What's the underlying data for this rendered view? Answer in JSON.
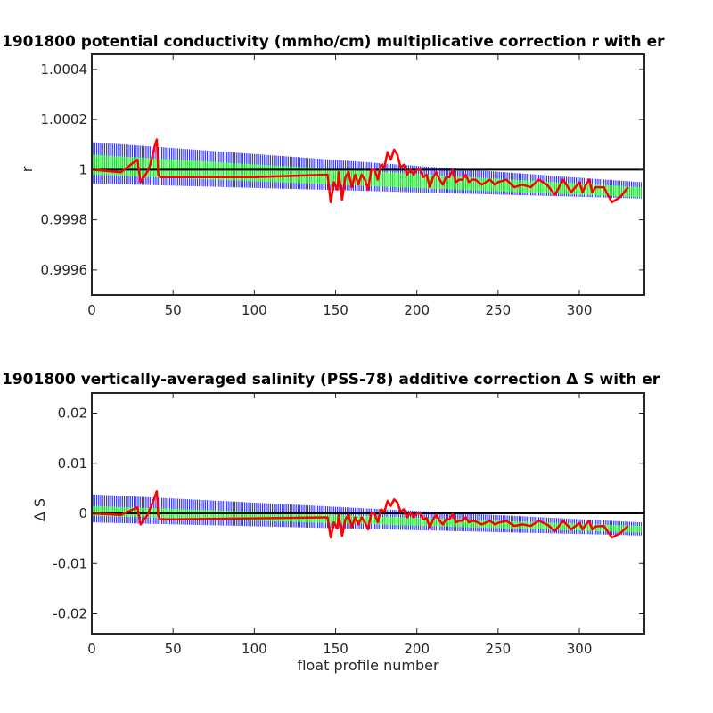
{
  "chart_data": [
    {
      "type": "line",
      "title": "1901800 potential conductivity (mmho/cm) multiplicative correction r with er",
      "xlabel": "",
      "ylabel": "r",
      "xlim": [
        0,
        340
      ],
      "ylim": [
        0.9995,
        1.00046
      ],
      "x_ticks": [
        0,
        50,
        100,
        150,
        200,
        250,
        300
      ],
      "x_tick_labels": [
        "0",
        "50",
        "100",
        "150",
        "200",
        "250",
        "300"
      ],
      "y_ticks": [
        0.9996,
        0.9998,
        1.0,
        1.0002,
        1.0004
      ],
      "y_tick_labels": [
        "0.9996",
        "0.9998",
        "1",
        "1.0002",
        "1.0004"
      ],
      "reference_line": 1.0,
      "grid": false,
      "colors": {
        "error_band": "#0000ff",
        "fit": "#00ff00",
        "data": "#ff0000",
        "reference": "#000000"
      },
      "series": [
        {
          "role": "error_band",
          "x": [
            0,
            338
          ],
          "upper": [
            1.00011,
            0.99995
          ],
          "lower": [
            0.999945,
            0.999885
          ]
        },
        {
          "role": "fit",
          "x": [
            0,
            338
          ],
          "upper": [
            1.00006,
            0.99993
          ],
          "lower": [
            0.99998,
            0.99989
          ]
        },
        {
          "role": "data",
          "x": [
            0,
            18,
            28,
            30,
            34,
            36,
            39,
            40,
            41,
            42,
            50,
            100,
            145,
            147,
            149,
            151,
            152,
            154,
            156,
            158,
            160,
            162,
            164,
            166,
            168,
            170,
            172,
            174,
            176,
            178,
            180,
            182,
            184,
            186,
            188,
            190,
            192,
            194,
            196,
            198,
            200,
            202,
            204,
            206,
            208,
            210,
            212,
            214,
            216,
            218,
            220,
            222,
            224,
            226,
            228,
            230,
            232,
            234,
            236,
            240,
            245,
            248,
            250,
            255,
            260,
            265,
            270,
            275,
            280,
            285,
            290,
            295,
            300,
            302,
            304,
            306,
            308,
            310,
            315,
            320,
            325,
            330
          ],
          "y": [
            1.0,
            0.99999,
            1.00004,
            0.99995,
            0.99999,
            1.00002,
            1.0001,
            1.00012,
            0.99998,
            0.99997,
            0.99997,
            0.99997,
            0.99998,
            0.99987,
            0.99995,
            0.99992,
            0.99999,
            0.99988,
            0.99997,
            0.99999,
            0.99993,
            0.99998,
            0.99994,
            0.99998,
            0.99996,
            0.99992,
            1.0,
            1.0,
            0.99996,
            1.00002,
            1.00001,
            1.00007,
            1.00004,
            1.00008,
            1.00006,
            1.00001,
            1.00002,
            0.99998,
            1.0,
            0.99998,
            1.0,
            1.0,
            0.99997,
            0.99998,
            0.99993,
            0.99997,
            0.99999,
            0.99996,
            0.99994,
            0.99997,
            0.99997,
            1.0,
            0.99995,
            0.99996,
            0.99996,
            0.99998,
            0.99995,
            0.99996,
            0.99996,
            0.99994,
            0.99996,
            0.99994,
            0.99995,
            0.99996,
            0.99993,
            0.99994,
            0.99993,
            0.99996,
            0.99994,
            0.9999,
            0.99996,
            0.99991,
            0.99995,
            0.99991,
            0.99994,
            0.99996,
            0.99991,
            0.99993,
            0.99993,
            0.99987,
            0.99989,
            0.99993
          ]
        }
      ]
    },
    {
      "type": "line",
      "title": "1901800 vertically-averaged salinity (PSS-78) additive correction Δ S with er",
      "xlabel": "float profile number",
      "ylabel": "Δ S",
      "xlim": [
        0,
        340
      ],
      "ylim": [
        -0.024,
        0.024
      ],
      "x_ticks": [
        0,
        50,
        100,
        150,
        200,
        250,
        300
      ],
      "x_tick_labels": [
        "0",
        "50",
        "100",
        "150",
        "200",
        "250",
        "300"
      ],
      "y_ticks": [
        -0.02,
        -0.01,
        0,
        0.01,
        0.02
      ],
      "y_tick_labels": [
        "-0.02",
        "-0.01",
        "0",
        "0.01",
        "0.02"
      ],
      "reference_line": 0,
      "grid": false,
      "colors": {
        "error_band": "#0000ff",
        "fit": "#00ff00",
        "data": "#ff0000",
        "reference": "#000000"
      },
      "series": [
        {
          "role": "error_band",
          "x": [
            0,
            338
          ],
          "upper": [
            0.0038,
            -0.0018
          ],
          "lower": [
            -0.0018,
            -0.0044
          ]
        },
        {
          "role": "fit",
          "x": [
            0,
            338
          ],
          "upper": [
            0.0015,
            -0.0025
          ],
          "lower": [
            -0.0005,
            -0.0038
          ]
        },
        {
          "role": "data",
          "x": [
            0,
            18,
            28,
            30,
            34,
            36,
            39,
            40,
            41,
            42,
            50,
            100,
            145,
            147,
            149,
            151,
            152,
            154,
            156,
            158,
            160,
            162,
            164,
            166,
            168,
            170,
            172,
            174,
            176,
            178,
            180,
            182,
            184,
            186,
            188,
            190,
            192,
            194,
            196,
            198,
            200,
            202,
            204,
            206,
            208,
            210,
            212,
            214,
            216,
            218,
            220,
            222,
            224,
            226,
            228,
            230,
            232,
            234,
            236,
            240,
            245,
            248,
            250,
            255,
            260,
            265,
            270,
            275,
            280,
            285,
            290,
            295,
            300,
            302,
            304,
            306,
            308,
            310,
            315,
            320,
            325,
            330
          ],
          "y": [
            0,
            -0.0003,
            0.0012,
            -0.0022,
            -0.0005,
            0.001,
            0.0035,
            0.0044,
            -0.0005,
            -0.0012,
            -0.0012,
            -0.001,
            -0.0008,
            -0.0048,
            -0.0018,
            -0.003,
            -0.0003,
            -0.0045,
            -0.0012,
            -0.0003,
            -0.0028,
            -0.0008,
            -0.0022,
            -0.0008,
            -0.0018,
            -0.0032,
            0.0001,
            -0.0001,
            -0.0018,
            0.0008,
            0.0003,
            0.0025,
            0.0015,
            0.0028,
            0.0022,
            0.0003,
            0.0008,
            -0.0008,
            0.0002,
            -0.0008,
            0,
            0,
            -0.0012,
            -0.0009,
            -0.0028,
            -0.0012,
            -0.0003,
            -0.0015,
            -0.0022,
            -0.0012,
            -0.0012,
            -0.0001,
            -0.0018,
            -0.0015,
            -0.0015,
            -0.0008,
            -0.0018,
            -0.0015,
            -0.0016,
            -0.0022,
            -0.0015,
            -0.0022,
            -0.0019,
            -0.0015,
            -0.0025,
            -0.0022,
            -0.0025,
            -0.0015,
            -0.0022,
            -0.0035,
            -0.0015,
            -0.0032,
            -0.0019,
            -0.0032,
            -0.0022,
            -0.0015,
            -0.0032,
            -0.0026,
            -0.0025,
            -0.0048,
            -0.004,
            -0.0025
          ]
        }
      ]
    }
  ]
}
